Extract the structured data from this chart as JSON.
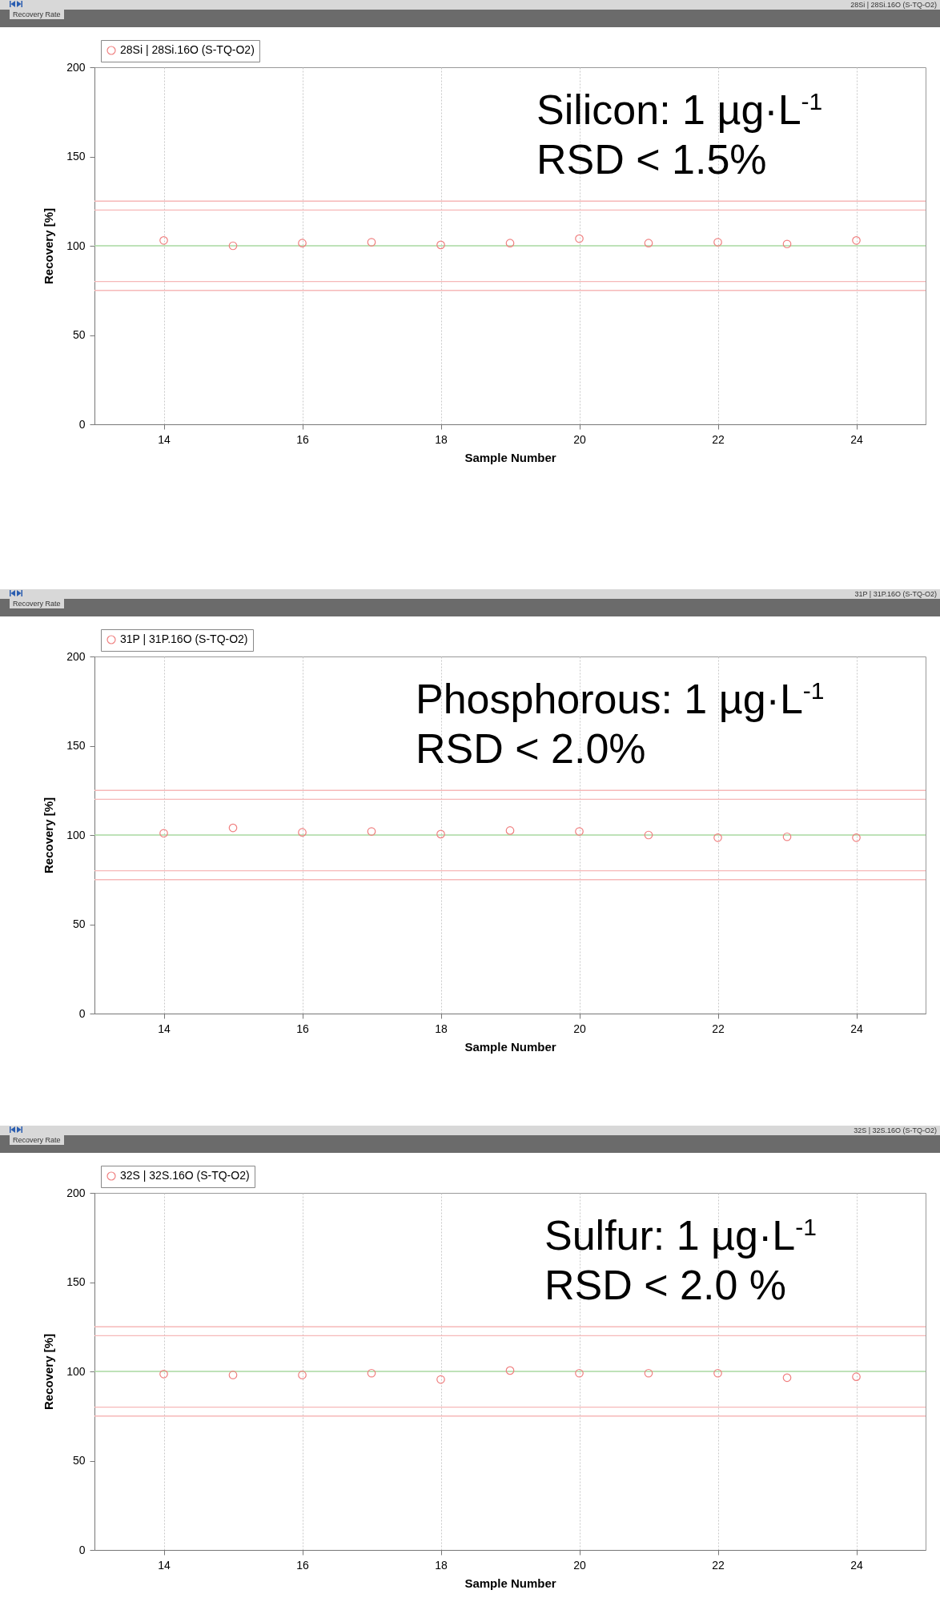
{
  "chart_data": [
    {
      "type": "scatter",
      "title": "Silicon: 1 µg·L$^{-1}$",
      "subtitle": "RSD < 1.5%",
      "xlabel": "Sample Number",
      "ylabel": "Recovery [%]",
      "annotations": [
        "Recovery Rate",
        "28Si | 28Si.16O (S-TQ-O2)"
      ],
      "x": [
        14,
        15,
        16,
        17,
        18,
        19,
        20,
        21,
        22,
        23,
        24
      ],
      "series": [
        {
          "name": "28Si | 28Si.16O (S-TQ-O2)",
          "color": "#f08080",
          "values": [
            103,
            100,
            101.5,
            102,
            100.5,
            101.5,
            104,
            101.5,
            102,
            101,
            103
          ]
        }
      ],
      "xlim": [
        13,
        25
      ],
      "xticks": [
        14,
        16,
        18,
        20,
        22,
        24
      ],
      "ylim": [
        0,
        200
      ],
      "yticks": [
        0,
        50,
        100,
        150,
        200
      ],
      "ref_lines": [
        {
          "axis": "y",
          "value": 125,
          "label": null,
          "color": "#f6b8b8"
        },
        {
          "axis": "y",
          "value": 120,
          "label": null,
          "color": "#f6b8b8"
        },
        {
          "axis": "y",
          "value": 100,
          "label": null,
          "color": "#a8d8a0"
        },
        {
          "axis": "y",
          "value": 80,
          "label": null,
          "color": "#f6b8b8"
        },
        {
          "axis": "y",
          "value": 75,
          "label": null,
          "color": "#f6b8b8"
        }
      ],
      "grid": "x",
      "legend": "top left",
      "marker": "circle"
    },
    {
      "type": "scatter",
      "title": "Phosphorous: 1 µg·L$^{-1}$",
      "subtitle": "RSD < 2.0%",
      "xlabel": "Sample Number",
      "ylabel": "Recovery [%]",
      "annotations": [
        "Recovery Rate",
        "31P | 31P.16O (S-TQ-O2)"
      ],
      "x": [
        14,
        15,
        16,
        17,
        18,
        19,
        20,
        21,
        22,
        23,
        24
      ],
      "series": [
        {
          "name": "31P | 31P.16O (S-TQ-O2)",
          "color": "#f08080",
          "values": [
            101,
            104,
            101.5,
            102,
            100.5,
            102.5,
            102,
            100,
            98.5,
            99,
            98.5
          ]
        }
      ],
      "xlim": [
        13,
        25
      ],
      "xticks": [
        14,
        16,
        18,
        20,
        22,
        24
      ],
      "ylim": [
        0,
        200
      ],
      "yticks": [
        0,
        50,
        100,
        150,
        200
      ],
      "ref_lines": [
        {
          "axis": "y",
          "value": 125,
          "label": null,
          "color": "#f6b8b8"
        },
        {
          "axis": "y",
          "value": 120,
          "label": null,
          "color": "#f6b8b8"
        },
        {
          "axis": "y",
          "value": 100,
          "label": null,
          "color": "#a8d8a0"
        },
        {
          "axis": "y",
          "value": 80,
          "label": null,
          "color": "#f6b8b8"
        },
        {
          "axis": "y",
          "value": 75,
          "label": null,
          "color": "#f6b8b8"
        }
      ],
      "grid": "x",
      "legend": "top left",
      "marker": "circle"
    },
    {
      "type": "scatter",
      "title": "Sulfur: 1 µg·L$^{-1}$",
      "subtitle": "RSD < 2.0 %",
      "xlabel": "Sample Number",
      "ylabel": "Recovery [%]",
      "annotations": [
        "Recovery Rate",
        "32S | 32S.16O (S-TQ-O2)"
      ],
      "x": [
        14,
        15,
        16,
        17,
        18,
        19,
        20,
        21,
        22,
        23,
        24
      ],
      "series": [
        {
          "name": "32S | 32S.16O (S-TQ-O2)",
          "color": "#f08080",
          "values": [
            98.5,
            98,
            98,
            99,
            95.5,
            100.5,
            99,
            99,
            99,
            96.5,
            97
          ]
        }
      ],
      "xlim": [
        13,
        25
      ],
      "xticks": [
        14,
        16,
        18,
        20,
        22,
        24
      ],
      "ylim": [
        0,
        200
      ],
      "yticks": [
        0,
        50,
        100,
        150,
        200
      ],
      "ref_lines": [
        {
          "axis": "y",
          "value": 125,
          "label": null,
          "color": "#f6b8b8"
        },
        {
          "axis": "y",
          "value": 120,
          "label": null,
          "color": "#f6b8b8"
        },
        {
          "axis": "y",
          "value": 100,
          "label": null,
          "color": "#a8d8a0"
        },
        {
          "axis": "y",
          "value": 80,
          "label": null,
          "color": "#f6b8b8"
        },
        {
          "axis": "y",
          "value": 75,
          "label": null,
          "color": "#f6b8b8"
        }
      ],
      "grid": "x",
      "legend": "top left",
      "marker": "circle"
    }
  ]
}
